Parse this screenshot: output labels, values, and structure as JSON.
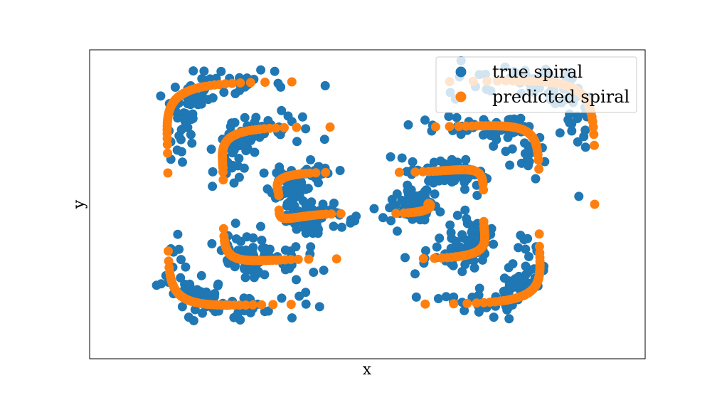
{
  "chart_data": {
    "type": "scatter",
    "title": "",
    "xlabel": "x",
    "ylabel": "y",
    "xlim": [
      -2.2,
      2.2
    ],
    "ylim": [
      -1.5,
      1.5
    ],
    "xticks": false,
    "yticks": false,
    "grid": false,
    "legend": {
      "position": "top-right",
      "entries": [
        "true spiral",
        "predicted spiral"
      ]
    },
    "series": [
      {
        "name": "true spiral",
        "color": "#1f77b4",
        "curve": {
          "kind": "spiral",
          "theta_range_deg": [
            0,
            1080
          ],
          "a0": 1.7,
          "b0": 1.3,
          "growth_per_turn": 0.44,
          "squareness_exponent": 0.25
        },
        "jitter": 0.08,
        "points": 900
      },
      {
        "name": "predicted spiral",
        "color": "#ff7f0e",
        "curve": {
          "kind": "spiral",
          "theta_range_deg": [
            0,
            1080
          ],
          "a0": 1.8,
          "b0": 1.3,
          "growth_per_turn": 0.44,
          "squareness_exponent": 0.25
        },
        "jitter": 0,
        "points": 500
      }
    ]
  }
}
